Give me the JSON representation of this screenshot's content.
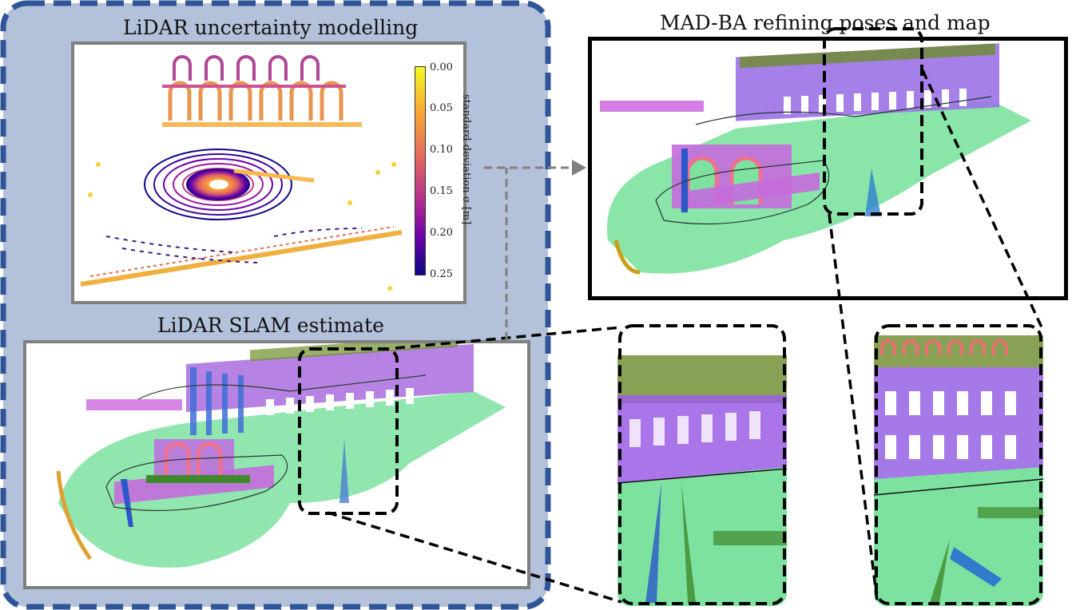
{
  "titles": {
    "uncertainty": "LiDAR uncertainty modelling",
    "slam": "LiDAR SLAM estimate",
    "madba": "MAD-BA refining poses and map"
  },
  "colorbar": {
    "label": "standard deviation σ [m]",
    "ticks": [
      "0.00",
      "0.05",
      "0.10",
      "0.15",
      "0.20",
      "0.25"
    ],
    "colors": [
      "#f0f921",
      "#fca636",
      "#e16462",
      "#b12a90",
      "#6a00a8",
      "#0d0887"
    ]
  },
  "colors": {
    "group_bg": "#b3c1da",
    "group_border": "#2f5597",
    "inner_border": "#808080",
    "arrow": "#808080"
  }
}
